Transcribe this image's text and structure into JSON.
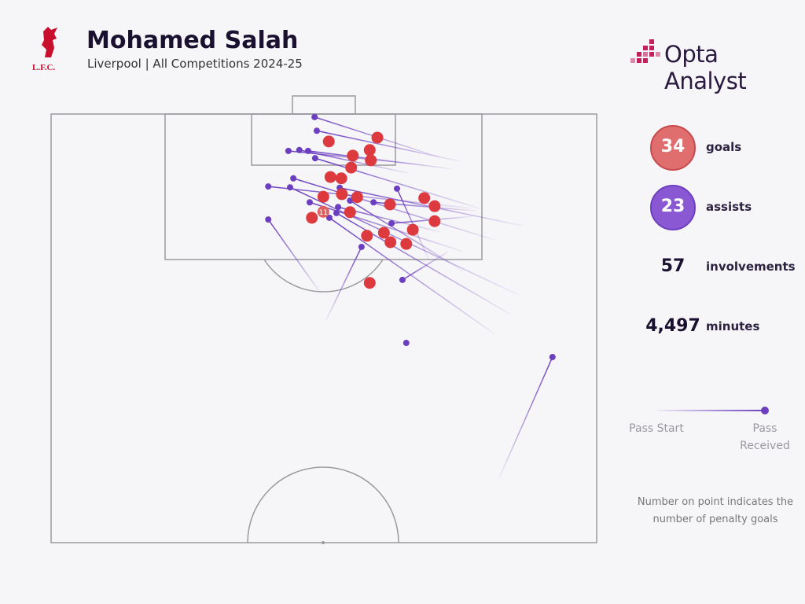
{
  "chart_data": {
    "type": "scatter",
    "title": "Mohamed Salah",
    "subtitle": "Liverpool | All Competitions 2024-25",
    "club": "L.F.C.",
    "brand": "Opta Analyst",
    "xlim": [
      0,
      100
    ],
    "ylim": [
      0,
      100
    ],
    "goals": {
      "color": "#dc3a3f",
      "points": [
        {
          "x": 59.8,
          "y": 5.5
        },
        {
          "x": 50.9,
          "y": 6.4
        },
        {
          "x": 58.4,
          "y": 8.4
        },
        {
          "x": 55.3,
          "y": 9.7
        },
        {
          "x": 58.6,
          "y": 10.8
        },
        {
          "x": 55.0,
          "y": 12.5
        },
        {
          "x": 51.2,
          "y": 14.7
        },
        {
          "x": 53.2,
          "y": 15.0
        },
        {
          "x": 49.9,
          "y": 19.3
        },
        {
          "x": 53.3,
          "y": 18.7
        },
        {
          "x": 56.1,
          "y": 19.4
        },
        {
          "x": 62.1,
          "y": 21.1
        },
        {
          "x": 68.4,
          "y": 19.6
        },
        {
          "x": 70.3,
          "y": 21.5
        },
        {
          "x": 54.8,
          "y": 22.9
        },
        {
          "x": 47.8,
          "y": 24.2
        },
        {
          "x": 70.3,
          "y": 25.0
        },
        {
          "x": 66.3,
          "y": 27.0
        },
        {
          "x": 61.0,
          "y": 27.7
        },
        {
          "x": 57.9,
          "y": 28.4
        },
        {
          "x": 62.2,
          "y": 29.9
        },
        {
          "x": 65.1,
          "y": 30.3
        },
        {
          "x": 58.4,
          "y": 39.4
        }
      ]
    },
    "penalty": {
      "x": 49.9,
      "y": 22.8,
      "count": 11
    },
    "assists": {
      "color": "#6b3fc0",
      "passes": [
        {
          "start_x": 71.3,
          "start_y": 10.1,
          "end_x": 48.3,
          "end_y": 0.7
        },
        {
          "start_x": 74.9,
          "start_y": 11.0,
          "end_x": 48.7,
          "end_y": 3.9
        },
        {
          "start_x": 68.4,
          "start_y": 11.9,
          "end_x": 43.5,
          "end_y": 8.6
        },
        {
          "start_x": 65.6,
          "start_y": 13.8,
          "end_x": 45.5,
          "end_y": 8.4
        },
        {
          "start_x": 73.5,
          "start_y": 12.8,
          "end_x": 47.1,
          "end_y": 8.6
        },
        {
          "start_x": 78.5,
          "start_y": 22.0,
          "end_x": 48.4,
          "end_y": 10.3
        },
        {
          "start_x": 81.4,
          "start_y": 29.4,
          "end_x": 44.4,
          "end_y": 15.0
        },
        {
          "start_x": 77.1,
          "start_y": 22.0,
          "end_x": 39.8,
          "end_y": 16.9
        },
        {
          "start_x": 85.7,
          "start_y": 42.2,
          "end_x": 43.8,
          "end_y": 17.1
        },
        {
          "start_x": 86.5,
          "start_y": 26.1,
          "end_x": 52.9,
          "end_y": 17.2
        },
        {
          "start_x": 69.2,
          "start_y": 33.9,
          "end_x": 63.4,
          "end_y": 17.4
        },
        {
          "start_x": 75.6,
          "start_y": 32.1,
          "end_x": 47.4,
          "end_y": 20.6
        },
        {
          "start_x": 71.3,
          "start_y": 27.5,
          "end_x": 52.6,
          "end_y": 21.7
        },
        {
          "start_x": 77.8,
          "start_y": 22.6,
          "end_x": 59.1,
          "end_y": 20.6
        },
        {
          "start_x": 81.4,
          "start_y": 51.4,
          "end_x": 51.0,
          "end_y": 24.2
        },
        {
          "start_x": 84.3,
          "start_y": 46.8,
          "end_x": 52.3,
          "end_y": 23.1
        },
        {
          "start_x": 77.1,
          "start_y": 23.9,
          "end_x": 62.4,
          "end_y": 25.5
        },
        {
          "start_x": 49.4,
          "start_y": 41.8,
          "end_x": 39.8,
          "end_y": 24.6
        },
        {
          "start_x": 50.4,
          "start_y": 48.1,
          "end_x": 56.9,
          "end_y": 31.0
        },
        {
          "start_x": 72.8,
          "start_y": 32.1,
          "end_x": 64.4,
          "end_y": 38.7
        },
        {
          "start_x": 65.1,
          "start_y": 53.4,
          "end_x": 65.1,
          "end_y": 53.4
        },
        {
          "start_x": 82.1,
          "start_y": 85.0,
          "end_x": 91.9,
          "end_y": 56.7
        },
        {
          "start_x": 75.6,
          "start_y": 36.7,
          "end_x": 54.8,
          "end_y": 20.2
        }
      ]
    },
    "stats": [
      {
        "value": 34,
        "name": "goals",
        "color": "#e06e6e"
      },
      {
        "value": 23,
        "name": "assists",
        "color": "#8b58d4"
      },
      {
        "value": 57,
        "name": "involvements"
      },
      {
        "value": 4497,
        "value_label": "4,497",
        "name": "minutes"
      }
    ],
    "legend": {
      "start": "Pass Start",
      "end": "Pass Received"
    },
    "note": "Number on point indicates the number of penalty goals"
  }
}
